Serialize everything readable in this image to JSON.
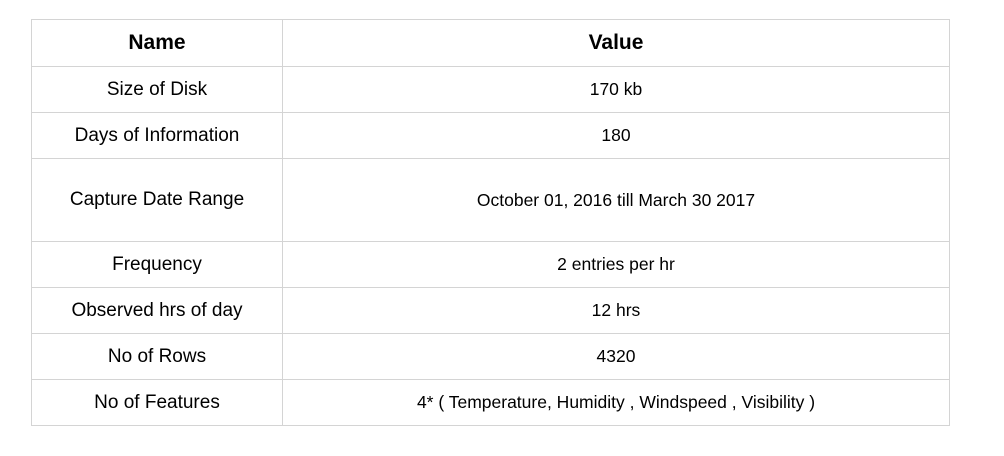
{
  "table": {
    "headers": {
      "name": "Name",
      "value": "Value"
    },
    "rows": [
      {
        "name": "Size of Disk",
        "value": "170 kb"
      },
      {
        "name": "Days of Information",
        "value": "180"
      },
      {
        "name": "Capture Date Range",
        "value": "October 01, 2016 till March 30 2017"
      },
      {
        "name": "Frequency",
        "value": "2 entries per hr"
      },
      {
        "name": "Observed hrs of day",
        "value": "12 hrs"
      },
      {
        "name": "No of Rows",
        "value": "4320"
      },
      {
        "name": "No of Features",
        "value": "4* ( Temperature, Humidity , Windspeed , Visibility )"
      }
    ]
  }
}
